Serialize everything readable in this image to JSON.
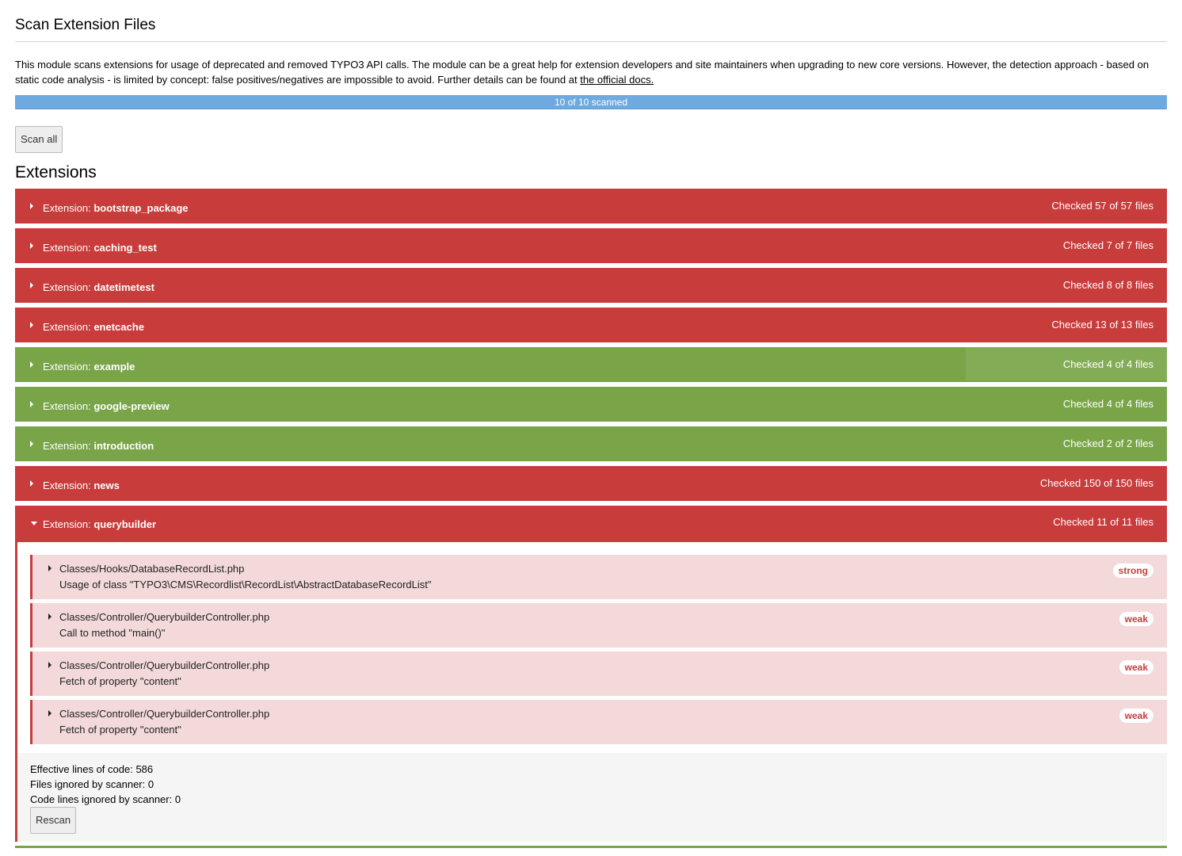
{
  "page": {
    "title": "Scan Extension Files",
    "intro_text": "This module scans extensions for usage of deprecated and removed TYPO3 API calls. The module can be a great help for extension developers and site maintainers when upgrading to new core versions. However, the detection approach - based on static code analysis - is limited by concept: false positives/negatives are impossible to avoid. Further details can be found at ",
    "intro_link": "the official docs.",
    "progress_label": "10 of 10 scanned",
    "progress_fraction": 1.0,
    "scan_all_label": "Scan all",
    "extensions_heading": "Extensions"
  },
  "colors": {
    "failed": "#c83c3c",
    "passed": "#79a548",
    "progress": "#6eaadf",
    "finding_bg": "#f3d9da"
  },
  "extensions": [
    {
      "prefix": "Extension: ",
      "name": "bootstrap_package",
      "count": "Checked 57 of 57 files",
      "status": "red"
    },
    {
      "prefix": "Extension: ",
      "name": "caching_test",
      "count": "Checked 7 of 7 files",
      "status": "red"
    },
    {
      "prefix": "Extension: ",
      "name": "datetimetest",
      "count": "Checked 8 of 8 files",
      "status": "red"
    },
    {
      "prefix": "Extension: ",
      "name": "enetcache",
      "count": "Checked 13 of 13 files",
      "status": "red"
    },
    {
      "prefix": "Extension: ",
      "name": "example",
      "count": "Checked 4 of 4 files",
      "status": "green"
    },
    {
      "prefix": "Extension: ",
      "name": "google-preview",
      "count": "Checked 4 of 4 files",
      "status": "green"
    },
    {
      "prefix": "Extension: ",
      "name": "introduction",
      "count": "Checked 2 of 2 files",
      "status": "green"
    },
    {
      "prefix": "Extension: ",
      "name": "news",
      "count": "Checked 150 of 150 files",
      "status": "red"
    }
  ],
  "open_extension": {
    "prefix": "Extension: ",
    "name": "querybuilder",
    "count": "Checked 11 of 11 files",
    "status": "red",
    "findings": [
      {
        "file": "Classes/Hooks/DatabaseRecordList.php",
        "message": "Usage of class \"TYPO3\\CMS\\Recordlist\\RecordList\\AbstractDatabaseRecordList\"",
        "badge": "strong"
      },
      {
        "file": "Classes/Controller/QuerybuilderController.php",
        "message": "Call to method \"main()\"",
        "badge": "weak"
      },
      {
        "file": "Classes/Controller/QuerybuilderController.php",
        "message": "Fetch of property \"content\"",
        "badge": "weak"
      },
      {
        "file": "Classes/Controller/QuerybuilderController.php",
        "message": "Fetch of property \"content\"",
        "badge": "weak"
      }
    ],
    "stats": {
      "effective_loc": "Effective lines of code: 586",
      "files_ignored": "Files ignored by scanner: 0",
      "lines_ignored": "Code lines ignored by scanner: 0"
    },
    "rescan_label": "Rescan"
  }
}
